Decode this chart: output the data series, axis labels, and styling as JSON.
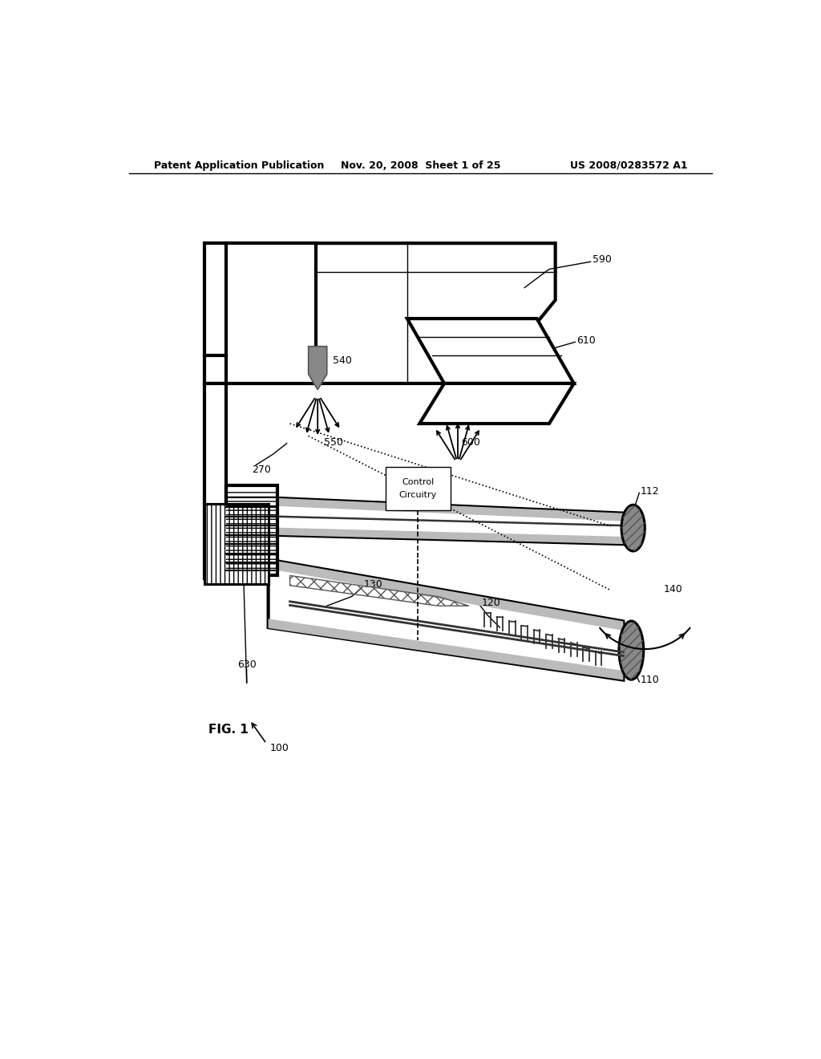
{
  "title_left": "Patent Application Publication",
  "title_center": "Nov. 20, 2008  Sheet 1 of 25",
  "title_right": "US 2008/0283572 A1",
  "fig_label": "FIG. 1",
  "ref_100": "100",
  "ref_110": "110",
  "ref_112": "112",
  "ref_120": "120",
  "ref_130": "130",
  "ref_140": "140",
  "ref_270": "270",
  "ref_540": "540",
  "ref_550": "550",
  "ref_590": "590",
  "ref_600": "600",
  "ref_610": "610",
  "ref_630": "630",
  "bg_color": "#ffffff",
  "line_color": "#000000"
}
